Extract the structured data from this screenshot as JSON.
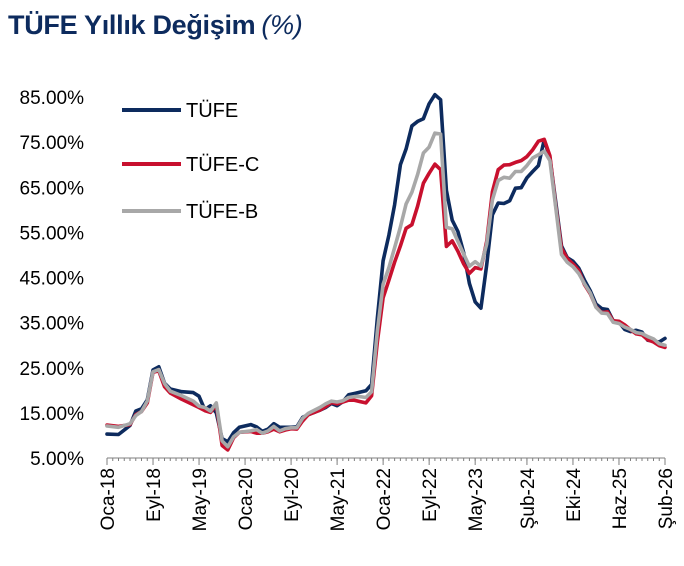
{
  "chart_data": {
    "type": "line",
    "title": "TÜFE Yıllık Değişim",
    "subtitle": "(%)",
    "xlabel": "",
    "ylabel": "",
    "ylim": [
      5,
      85
    ],
    "yticks": [
      5,
      15,
      25,
      35,
      45,
      55,
      65,
      75,
      85
    ],
    "ytick_labels": [
      "5.00%",
      "15.00%",
      "25.00%",
      "35.00%",
      "45.00%",
      "55.00%",
      "65.00%",
      "75.00%",
      "85.00%"
    ],
    "x_range": [
      "2018-01",
      "2026-02"
    ],
    "xtick_labels": [
      {
        "label": "Oca-18",
        "date": "2018-01"
      },
      {
        "label": "Eyl-18",
        "date": "2018-09"
      },
      {
        "label": "May-19",
        "date": "2019-05"
      },
      {
        "label": "Oca-20",
        "date": "2020-01"
      },
      {
        "label": "Eyl-20",
        "date": "2020-09"
      },
      {
        "label": "May-21",
        "date": "2021-05"
      },
      {
        "label": "Oca-22",
        "date": "2022-01"
      },
      {
        "label": "Eyl-22",
        "date": "2022-09"
      },
      {
        "label": "May-23",
        "date": "2023-05"
      },
      {
        "label": "Şub-24",
        "date": "2024-02"
      },
      {
        "label": "Eki-24",
        "date": "2024-10"
      },
      {
        "label": "Haz-25",
        "date": "2025-06"
      },
      {
        "label": "Şub-26",
        "date": "2026-02"
      }
    ],
    "legend": "top-left",
    "grid": false,
    "series": [
      {
        "name": "TÜFE",
        "color": "#0d2b5e",
        "points": [
          [
            "2018-01",
            10.3
          ],
          [
            "2018-03",
            10.2
          ],
          [
            "2018-05",
            12.2
          ],
          [
            "2018-06",
            15.4
          ],
          [
            "2018-07",
            15.9
          ],
          [
            "2018-08",
            17.9
          ],
          [
            "2018-09",
            24.5
          ],
          [
            "2018-10",
            25.2
          ],
          [
            "2018-11",
            21.6
          ],
          [
            "2018-12",
            20.3
          ],
          [
            "2019-02",
            19.7
          ],
          [
            "2019-04",
            19.5
          ],
          [
            "2019-05",
            18.7
          ],
          [
            "2019-06",
            15.7
          ],
          [
            "2019-07",
            16.6
          ],
          [
            "2019-08",
            15.0
          ],
          [
            "2019-09",
            9.3
          ],
          [
            "2019-10",
            8.6
          ],
          [
            "2019-11",
            10.6
          ],
          [
            "2019-12",
            11.8
          ],
          [
            "2020-02",
            12.4
          ],
          [
            "2020-03",
            11.9
          ],
          [
            "2020-04",
            10.9
          ],
          [
            "2020-05",
            11.4
          ],
          [
            "2020-06",
            12.6
          ],
          [
            "2020-07",
            11.8
          ],
          [
            "2020-08",
            11.8
          ],
          [
            "2020-09",
            11.8
          ],
          [
            "2020-10",
            11.9
          ],
          [
            "2020-11",
            14.0
          ],
          [
            "2020-12",
            14.6
          ],
          [
            "2021-02",
            15.6
          ],
          [
            "2021-03",
            16.2
          ],
          [
            "2021-04",
            17.1
          ],
          [
            "2021-05",
            16.6
          ],
          [
            "2021-06",
            17.5
          ],
          [
            "2021-07",
            19.0
          ],
          [
            "2021-08",
            19.3
          ],
          [
            "2021-09",
            19.6
          ],
          [
            "2021-10",
            19.9
          ],
          [
            "2021-11",
            21.3
          ],
          [
            "2021-12",
            36.1
          ],
          [
            "2022-01",
            48.7
          ],
          [
            "2022-02",
            54.4
          ],
          [
            "2022-03",
            61.1
          ],
          [
            "2022-04",
            70.0
          ],
          [
            "2022-05",
            73.5
          ],
          [
            "2022-06",
            78.6
          ],
          [
            "2022-07",
            79.6
          ],
          [
            "2022-08",
            80.2
          ],
          [
            "2022-09",
            83.5
          ],
          [
            "2022-10",
            85.5
          ],
          [
            "2022-11",
            84.4
          ],
          [
            "2022-12",
            64.3
          ],
          [
            "2023-01",
            57.7
          ],
          [
            "2023-02",
            55.2
          ],
          [
            "2023-03",
            50.5
          ],
          [
            "2023-04",
            43.7
          ],
          [
            "2023-05",
            39.6
          ],
          [
            "2023-06",
            38.2
          ],
          [
            "2023-07",
            47.8
          ],
          [
            "2023-08",
            58.9
          ],
          [
            "2023-09",
            61.5
          ],
          [
            "2023-10",
            61.4
          ],
          [
            "2023-11",
            62.0
          ],
          [
            "2023-12",
            64.8
          ],
          [
            "2024-01",
            64.9
          ],
          [
            "2024-02",
            67.1
          ],
          [
            "2024-03",
            68.5
          ],
          [
            "2024-04",
            69.8
          ],
          [
            "2024-05",
            75.5
          ],
          [
            "2024-06",
            71.6
          ],
          [
            "2024-07",
            61.8
          ],
          [
            "2024-08",
            52.0
          ],
          [
            "2024-09",
            49.4
          ],
          [
            "2024-10",
            48.6
          ],
          [
            "2024-11",
            47.1
          ],
          [
            "2024-12",
            44.4
          ],
          [
            "2025-01",
            42.1
          ],
          [
            "2025-02",
            39.1
          ],
          [
            "2025-03",
            38.1
          ],
          [
            "2025-04",
            37.9
          ],
          [
            "2025-05",
            35.4
          ],
          [
            "2025-06",
            35.1
          ],
          [
            "2025-07",
            33.5
          ],
          [
            "2025-08",
            33.0
          ],
          [
            "2025-09",
            33.3
          ],
          [
            "2025-10",
            32.9
          ],
          [
            "2025-11",
            31.1
          ],
          [
            "2025-12",
            30.9
          ],
          [
            "2026-01",
            30.7
          ],
          [
            "2026-02",
            31.5
          ]
        ]
      },
      {
        "name": "TÜFE-C",
        "color": "#c8102e",
        "points": [
          [
            "2018-01",
            12.3
          ],
          [
            "2018-03",
            12.0
          ],
          [
            "2018-05",
            12.4
          ],
          [
            "2018-06",
            14.6
          ],
          [
            "2018-07",
            15.3
          ],
          [
            "2018-08",
            17.2
          ],
          [
            "2018-09",
            24.0
          ],
          [
            "2018-10",
            24.3
          ],
          [
            "2018-11",
            20.8
          ],
          [
            "2018-12",
            19.4
          ],
          [
            "2019-02",
            18.0
          ],
          [
            "2019-04",
            16.8
          ],
          [
            "2019-05",
            16.2
          ],
          [
            "2019-06",
            15.5
          ],
          [
            "2019-07",
            15.1
          ],
          [
            "2019-08",
            16.8
          ],
          [
            "2019-09",
            7.8
          ],
          [
            "2019-10",
            6.8
          ],
          [
            "2019-11",
            9.5
          ],
          [
            "2019-12",
            10.7
          ],
          [
            "2020-02",
            10.9
          ],
          [
            "2020-03",
            10.5
          ],
          [
            "2020-04",
            10.5
          ],
          [
            "2020-05",
            10.8
          ],
          [
            "2020-06",
            11.4
          ],
          [
            "2020-07",
            10.8
          ],
          [
            "2020-08",
            11.2
          ],
          [
            "2020-09",
            11.5
          ],
          [
            "2020-10",
            11.4
          ],
          [
            "2020-11",
            13.2
          ],
          [
            "2020-12",
            14.6
          ],
          [
            "2021-02",
            15.6
          ],
          [
            "2021-03",
            16.4
          ],
          [
            "2021-04",
            17.3
          ],
          [
            "2021-05",
            17.0
          ],
          [
            "2021-06",
            17.4
          ],
          [
            "2021-07",
            17.8
          ],
          [
            "2021-08",
            17.8
          ],
          [
            "2021-09",
            17.5
          ],
          [
            "2021-10",
            17.2
          ],
          [
            "2021-11",
            18.8
          ],
          [
            "2021-12",
            30.8
          ],
          [
            "2022-01",
            40.5
          ],
          [
            "2022-02",
            44.4
          ],
          [
            "2022-03",
            48.4
          ],
          [
            "2022-04",
            52.0
          ],
          [
            "2022-05",
            55.9
          ],
          [
            "2022-06",
            56.7
          ],
          [
            "2022-07",
            60.8
          ],
          [
            "2022-08",
            65.9
          ],
          [
            "2022-09",
            68.1
          ],
          [
            "2022-10",
            70.1
          ],
          [
            "2022-11",
            68.9
          ],
          [
            "2022-12",
            51.9
          ],
          [
            "2023-01",
            53.1
          ],
          [
            "2023-02",
            50.8
          ],
          [
            "2023-03",
            48.0
          ],
          [
            "2023-04",
            45.9
          ],
          [
            "2023-05",
            47.2
          ],
          [
            "2023-06",
            46.9
          ],
          [
            "2023-07",
            53.0
          ],
          [
            "2023-08",
            64.0
          ],
          [
            "2023-09",
            68.9
          ],
          [
            "2023-10",
            69.9
          ],
          [
            "2023-11",
            70.0
          ],
          [
            "2023-12",
            70.5
          ],
          [
            "2024-01",
            70.9
          ],
          [
            "2024-02",
            71.8
          ],
          [
            "2024-03",
            73.3
          ],
          [
            "2024-04",
            75.2
          ],
          [
            "2024-05",
            75.6
          ],
          [
            "2024-06",
            72.0
          ],
          [
            "2024-07",
            61.0
          ],
          [
            "2024-08",
            51.5
          ],
          [
            "2024-09",
            49.2
          ],
          [
            "2024-10",
            48.0
          ],
          [
            "2024-11",
            46.6
          ],
          [
            "2024-12",
            43.4
          ],
          [
            "2025-01",
            41.4
          ],
          [
            "2025-02",
            38.5
          ],
          [
            "2025-03",
            37.2
          ],
          [
            "2025-04",
            37.4
          ],
          [
            "2025-05",
            35.4
          ],
          [
            "2025-06",
            35.3
          ],
          [
            "2025-07",
            34.5
          ],
          [
            "2025-08",
            33.4
          ],
          [
            "2025-09",
            32.5
          ],
          [
            "2025-10",
            32.3
          ],
          [
            "2025-11",
            31.2
          ],
          [
            "2025-12",
            30.7
          ],
          [
            "2026-01",
            29.9
          ],
          [
            "2026-02",
            29.5
          ]
        ]
      },
      {
        "name": "TÜFE-B",
        "color": "#a8a8a8",
        "points": [
          [
            "2018-01",
            12.1
          ],
          [
            "2018-03",
            11.8
          ],
          [
            "2018-05",
            12.6
          ],
          [
            "2018-06",
            14.4
          ],
          [
            "2018-07",
            15.3
          ],
          [
            "2018-08",
            17.6
          ],
          [
            "2018-09",
            24.1
          ],
          [
            "2018-10",
            24.6
          ],
          [
            "2018-11",
            21.5
          ],
          [
            "2018-12",
            19.8
          ],
          [
            "2019-02",
            18.8
          ],
          [
            "2019-04",
            17.6
          ],
          [
            "2019-05",
            16.5
          ],
          [
            "2019-06",
            16.2
          ],
          [
            "2019-07",
            15.4
          ],
          [
            "2019-08",
            17.2
          ],
          [
            "2019-09",
            8.8
          ],
          [
            "2019-10",
            7.5
          ],
          [
            "2019-11",
            9.7
          ],
          [
            "2019-12",
            10.7
          ],
          [
            "2020-02",
            11.0
          ],
          [
            "2020-03",
            11.3
          ],
          [
            "2020-04",
            10.5
          ],
          [
            "2020-05",
            11.0
          ],
          [
            "2020-06",
            12.0
          ],
          [
            "2020-07",
            11.0
          ],
          [
            "2020-08",
            11.5
          ],
          [
            "2020-09",
            11.7
          ],
          [
            "2020-10",
            11.7
          ],
          [
            "2020-11",
            13.8
          ],
          [
            "2020-12",
            14.9
          ],
          [
            "2021-02",
            16.2
          ],
          [
            "2021-03",
            17.0
          ],
          [
            "2021-04",
            17.6
          ],
          [
            "2021-05",
            17.4
          ],
          [
            "2021-06",
            17.7
          ],
          [
            "2021-07",
            18.4
          ],
          [
            "2021-08",
            18.6
          ],
          [
            "2021-09",
            18.6
          ],
          [
            "2021-10",
            18.4
          ],
          [
            "2021-11",
            19.7
          ],
          [
            "2021-12",
            33.2
          ],
          [
            "2022-01",
            43.5
          ],
          [
            "2022-02",
            47.2
          ],
          [
            "2022-03",
            51.6
          ],
          [
            "2022-04",
            56.2
          ],
          [
            "2022-05",
            61.3
          ],
          [
            "2022-06",
            63.9
          ],
          [
            "2022-07",
            67.8
          ],
          [
            "2022-08",
            72.6
          ],
          [
            "2022-09",
            73.9
          ],
          [
            "2022-10",
            77.0
          ],
          [
            "2022-11",
            76.8
          ],
          [
            "2022-12",
            56.1
          ],
          [
            "2023-01",
            55.8
          ],
          [
            "2023-02",
            53.0
          ],
          [
            "2023-03",
            50.2
          ],
          [
            "2023-04",
            47.5
          ],
          [
            "2023-05",
            48.5
          ],
          [
            "2023-06",
            47.5
          ],
          [
            "2023-07",
            52.4
          ],
          [
            "2023-08",
            62.2
          ],
          [
            "2023-09",
            66.5
          ],
          [
            "2023-10",
            67.2
          ],
          [
            "2023-11",
            67.0
          ],
          [
            "2023-12",
            68.5
          ],
          [
            "2024-01",
            68.5
          ],
          [
            "2024-02",
            69.8
          ],
          [
            "2024-03",
            71.5
          ],
          [
            "2024-04",
            72.2
          ],
          [
            "2024-05",
            73.0
          ],
          [
            "2024-06",
            70.9
          ],
          [
            "2024-07",
            60.6
          ],
          [
            "2024-08",
            50.1
          ],
          [
            "2024-09",
            48.4
          ],
          [
            "2024-10",
            47.4
          ],
          [
            "2024-11",
            45.9
          ],
          [
            "2024-12",
            43.6
          ],
          [
            "2025-01",
            41.6
          ],
          [
            "2025-02",
            38.4
          ],
          [
            "2025-03",
            37.1
          ],
          [
            "2025-04",
            37.0
          ],
          [
            "2025-05",
            35.1
          ],
          [
            "2025-06",
            34.8
          ],
          [
            "2025-07",
            34.0
          ],
          [
            "2025-08",
            33.5
          ],
          [
            "2025-09",
            32.8
          ],
          [
            "2025-10",
            32.6
          ],
          [
            "2025-11",
            31.9
          ],
          [
            "2025-12",
            31.4
          ],
          [
            "2026-01",
            30.3
          ],
          [
            "2026-02",
            30.0
          ]
        ]
      }
    ]
  }
}
